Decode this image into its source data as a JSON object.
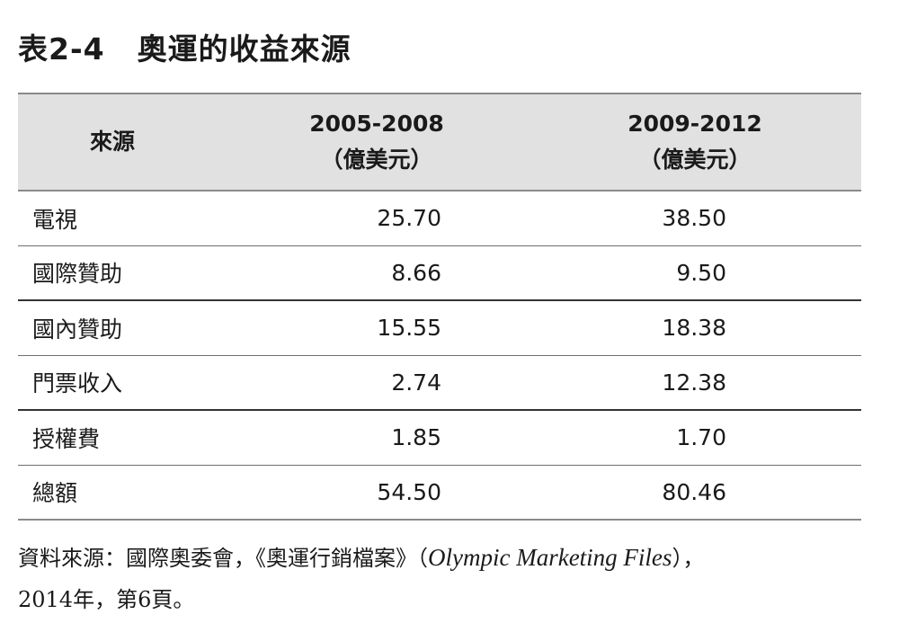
{
  "table_label": "表2-4",
  "table_title": "奧運的收益來源",
  "headers": {
    "source": "來源",
    "col1_period": "2005-2008",
    "col1_unit": "（億美元）",
    "col2_period": "2009-2012",
    "col2_unit": "（億美元）"
  },
  "rows": [
    {
      "source": "電視",
      "v2005_2008": "25.70",
      "v2009_2012": "38.50"
    },
    {
      "source": "國際贊助",
      "v2005_2008": "8.66",
      "v2009_2012": "9.50"
    },
    {
      "source": "國內贊助",
      "v2005_2008": "15.55",
      "v2009_2012": "18.38"
    },
    {
      "source": "門票收入",
      "v2005_2008": "2.74",
      "v2009_2012": "12.38"
    },
    {
      "source": "授權費",
      "v2005_2008": "1.85",
      "v2009_2012": "1.70"
    },
    {
      "source": "總額",
      "v2005_2008": "54.50",
      "v2009_2012": "80.46"
    }
  ],
  "note": {
    "prefix": "資料來源：國際奧委會，《奧運行銷檔案》（",
    "english_title": "Olympic Marketing Files",
    "suffix": "），",
    "line2": "2014年，第6頁。"
  }
}
